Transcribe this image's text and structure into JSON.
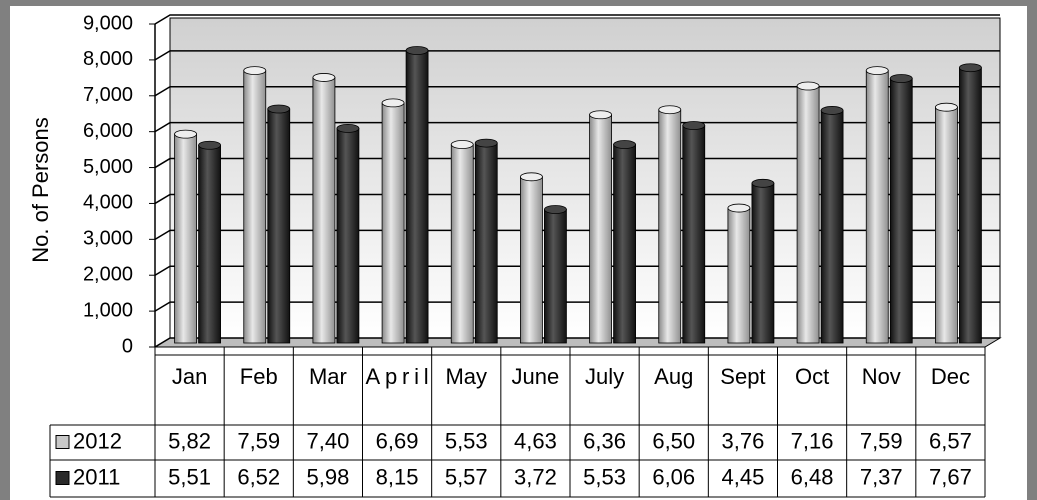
{
  "chart_data": {
    "type": "bar",
    "y_label": "No. of Persons",
    "categories": [
      "Jan",
      "Feb",
      "Mar",
      "April",
      "May",
      "June",
      "July",
      "Aug",
      "Sept",
      "Oct",
      "Nov",
      "Dec"
    ],
    "series": [
      {
        "name": "2012",
        "color": "#c8c8c8",
        "values": [
          5820,
          7590,
          7400,
          6690,
          5530,
          4630,
          6360,
          6500,
          3760,
          7160,
          7590,
          6570
        ],
        "value_labels": [
          "5,82",
          "7,59",
          "7,40",
          "6,69",
          "5,53",
          "4,63",
          "6,36",
          "6,50",
          "3,76",
          "7,16",
          "7,59",
          "6,57"
        ]
      },
      {
        "name": "2011",
        "color": "#2a2a2a",
        "values": [
          5510,
          6520,
          5980,
          8150,
          5570,
          3720,
          5530,
          6060,
          4450,
          6480,
          7370,
          7670
        ],
        "value_labels": [
          "5,51",
          "6,52",
          "5,98",
          "8,15",
          "5,57",
          "3,72",
          "5,53",
          "6,06",
          "4,45",
          "6,48",
          "7,37",
          "7,67"
        ]
      }
    ],
    "ylim": [
      0,
      9000
    ],
    "yticks": [
      0,
      {
        "value": 1000,
        "label": "1,000"
      },
      {
        "value": 2000,
        "label": "2,000"
      },
      {
        "value": 3000,
        "label": "3,000"
      },
      {
        "value": 4000,
        "label": "4,000"
      },
      {
        "value": 5000,
        "label": "5,000"
      },
      {
        "value": 6000,
        "label": "6,000"
      },
      {
        "value": 7000,
        "label": "7,000"
      },
      {
        "value": 8000,
        "label": "8,000"
      },
      {
        "value": 9000,
        "label": "9,000"
      }
    ],
    "grid": true
  }
}
